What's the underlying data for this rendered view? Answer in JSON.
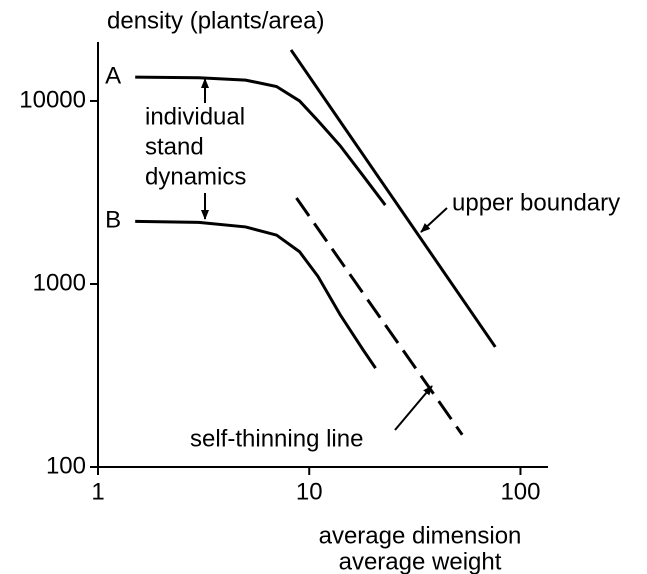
{
  "chart_data": {
    "type": "line",
    "log_x": true,
    "log_y": true,
    "y_label": "density (plants/area)",
    "x_label": [
      "average dimension",
      "average weight"
    ],
    "annotation": [
      "individual",
      "stand",
      "dynamics"
    ],
    "xlim": [
      1,
      135
    ],
    "ylim": [
      100,
      21000
    ],
    "xticks": [
      1,
      10,
      100
    ],
    "yticks": [
      100,
      1000,
      10000
    ],
    "series": [
      {
        "name": "A",
        "color": "#000000",
        "dashed": false,
        "x": [
          1.5,
          3,
          5,
          7,
          9,
          11,
          14,
          18,
          22.9
        ],
        "values": [
          13500,
          13400,
          13000,
          12000,
          10000,
          7800,
          5700,
          3900,
          2700
        ]
      },
      {
        "name": "B",
        "color": "#000000",
        "dashed": false,
        "x": [
          1.5,
          3,
          5,
          7,
          9,
          11,
          14,
          18,
          20.6
        ],
        "values": [
          2200,
          2170,
          2050,
          1850,
          1500,
          1100,
          680,
          436,
          347
        ]
      },
      {
        "name": "upper boundary",
        "color": "#000000",
        "dashed": false,
        "x": [
          8.2,
          76
        ],
        "values": [
          19000,
          453
        ]
      },
      {
        "name": "self-thinning line",
        "color": "#000000",
        "dashed": true,
        "x": [
          8.7,
          53
        ],
        "values": [
          2950,
          150
        ]
      }
    ]
  }
}
